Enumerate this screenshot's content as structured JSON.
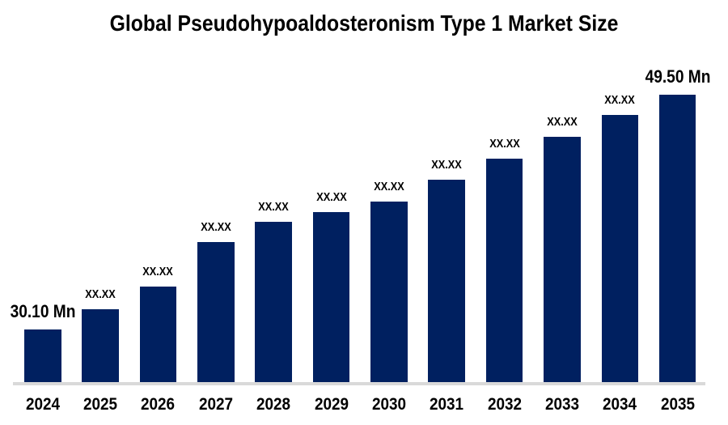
{
  "chart_data": {
    "type": "bar",
    "title": "Global Pseudohypoaldosteronism Type 1 Market Size",
    "unit": "Mn",
    "categories": [
      "2024",
      "2025",
      "2026",
      "2027",
      "2028",
      "2029",
      "2030",
      "2031",
      "2032",
      "2033",
      "2034",
      "2035"
    ],
    "bar_labels": [
      "30.10 Mn",
      "XX.XX",
      "XX.XX",
      "XX.XX",
      "XX.XX",
      "XX.XX",
      "XX.XX",
      "XX.XX",
      "XX.XX",
      "XX.XX",
      "XX.XX",
      "49.50 Mn"
    ],
    "values_known": {
      "2024": 30.1,
      "2035": 49.5
    },
    "values_est_mn": [
      30.1,
      31.77,
      33.65,
      37.3,
      39.0,
      39.8,
      40.67,
      42.47,
      44.21,
      46.02,
      47.83,
      49.5
    ],
    "ylim": [
      25.75,
      49.5
    ],
    "grid": false,
    "legend": "none",
    "xlabel": "",
    "ylabel": "",
    "bar_color": "#002060",
    "axis_line_color": "#d9d9d9",
    "text_color": "#000000",
    "background": "#ffffff"
  }
}
